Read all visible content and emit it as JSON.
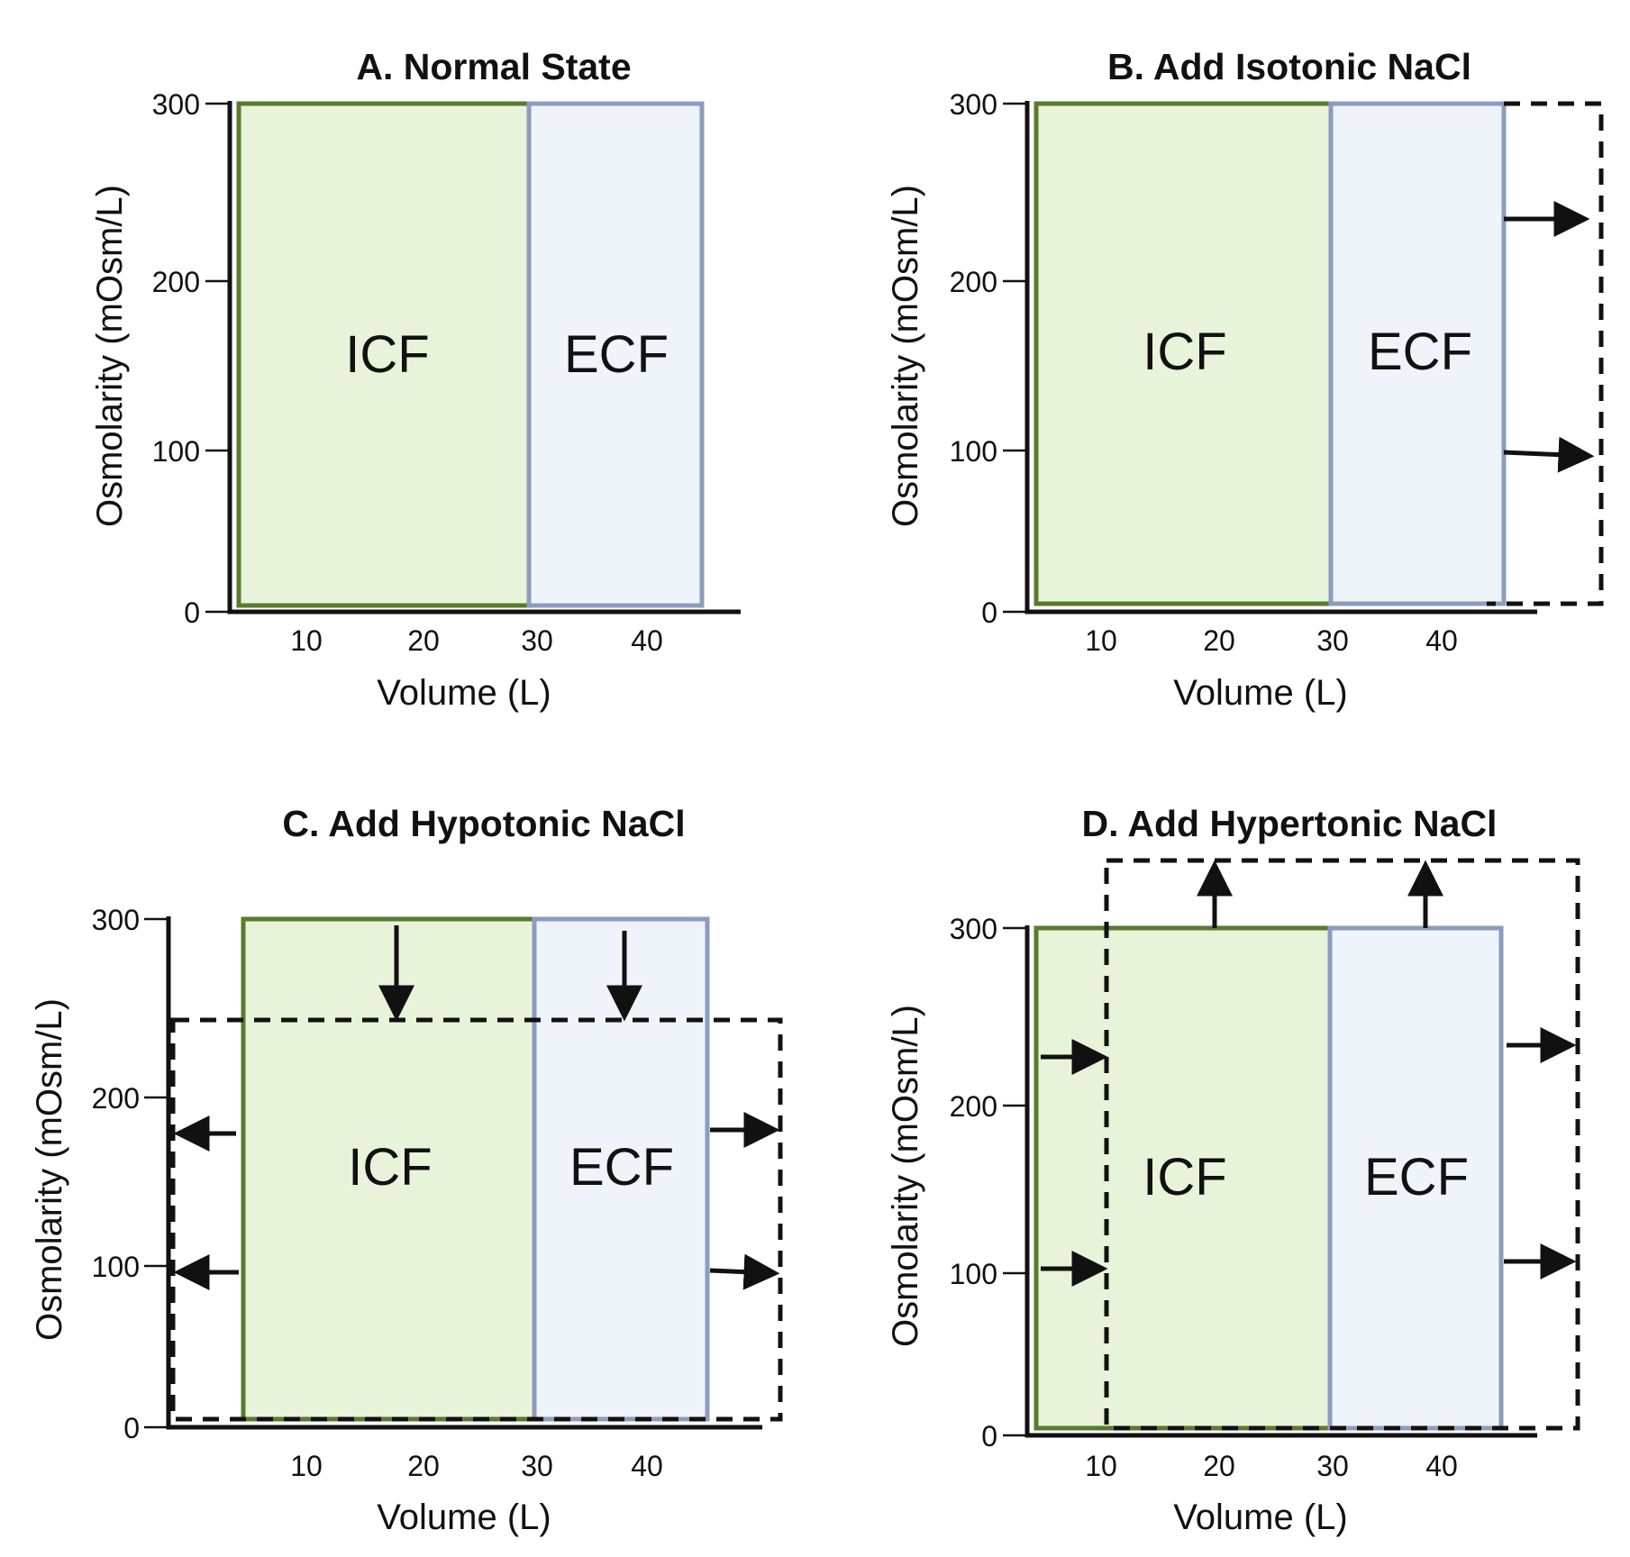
{
  "panels": [
    {
      "title": "A. Normal State",
      "xlabel": "Volume (L)",
      "ylabel": "Osmolarity (mOsm/L)",
      "yticks": [
        "300",
        "200",
        "100",
        "0"
      ],
      "xticks": [
        "10",
        "20",
        "30",
        "40"
      ],
      "icf_label": "ICF",
      "ecf_label": "ECF"
    },
    {
      "title": "B. Add Isotonic NaCl",
      "xlabel": "Volume (L)",
      "ylabel": "Osmolarity (mOsm/L)",
      "yticks": [
        "300",
        "200",
        "100",
        "0"
      ],
      "xticks": [
        "10",
        "20",
        "30",
        "40"
      ],
      "icf_label": "ICF",
      "ecf_label": "ECF"
    },
    {
      "title": "C. Add Hypotonic NaCl",
      "xlabel": "Volume (L)",
      "ylabel": "Osmolarity (mOsm/L)",
      "yticks": [
        "300",
        "200",
        "100",
        "0"
      ],
      "xticks": [
        "10",
        "20",
        "30",
        "40"
      ],
      "icf_label": "ICF",
      "ecf_label": "ECF"
    },
    {
      "title": "D. Add Hypertonic NaCl",
      "xlabel": "Volume (L)",
      "ylabel": "Osmolarity (mOsm/L)",
      "yticks": [
        "300",
        "200",
        "100",
        "0"
      ],
      "xticks": [
        "10",
        "20",
        "30",
        "40"
      ],
      "icf_label": "ICF",
      "ecf_label": "ECF"
    }
  ],
  "colors": {
    "icf_fill": "#e8f4d9",
    "icf_border": "#5a7a2e",
    "ecf_fill": "#eff3fa",
    "ecf_border": "#8c9cbf"
  }
}
